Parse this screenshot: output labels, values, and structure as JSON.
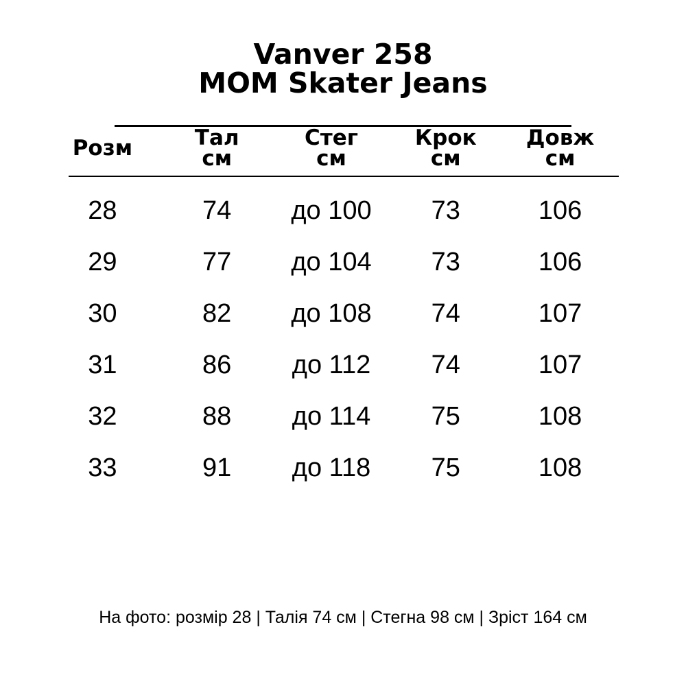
{
  "title": {
    "line1": "Vanver 258",
    "line2": "MOM Skater Jeans"
  },
  "table": {
    "columns": [
      {
        "label": "Розм",
        "unit": ""
      },
      {
        "label": "Тал",
        "unit": "см"
      },
      {
        "label": "Стег",
        "unit": "см"
      },
      {
        "label": "Крок",
        "unit": "см"
      },
      {
        "label": "Довж",
        "unit": "см"
      }
    ],
    "rows": [
      [
        "28",
        "74",
        "до 100",
        "73",
        "106"
      ],
      [
        "29",
        "77",
        "до 104",
        "73",
        "106"
      ],
      [
        "30",
        "82",
        "до 108",
        "74",
        "107"
      ],
      [
        "31",
        "86",
        "до 112",
        "74",
        "107"
      ],
      [
        "32",
        "88",
        "до 114",
        "75",
        "108"
      ],
      [
        "33",
        "91",
        "до 118",
        "75",
        "108"
      ]
    ]
  },
  "footer": {
    "text": "На фото: розмір 28 | Талія 74 см | Стегна 98 см | Зріст 164 см"
  },
  "colors": {
    "text": "#000000",
    "background": "#ffffff",
    "rule": "#000000"
  }
}
